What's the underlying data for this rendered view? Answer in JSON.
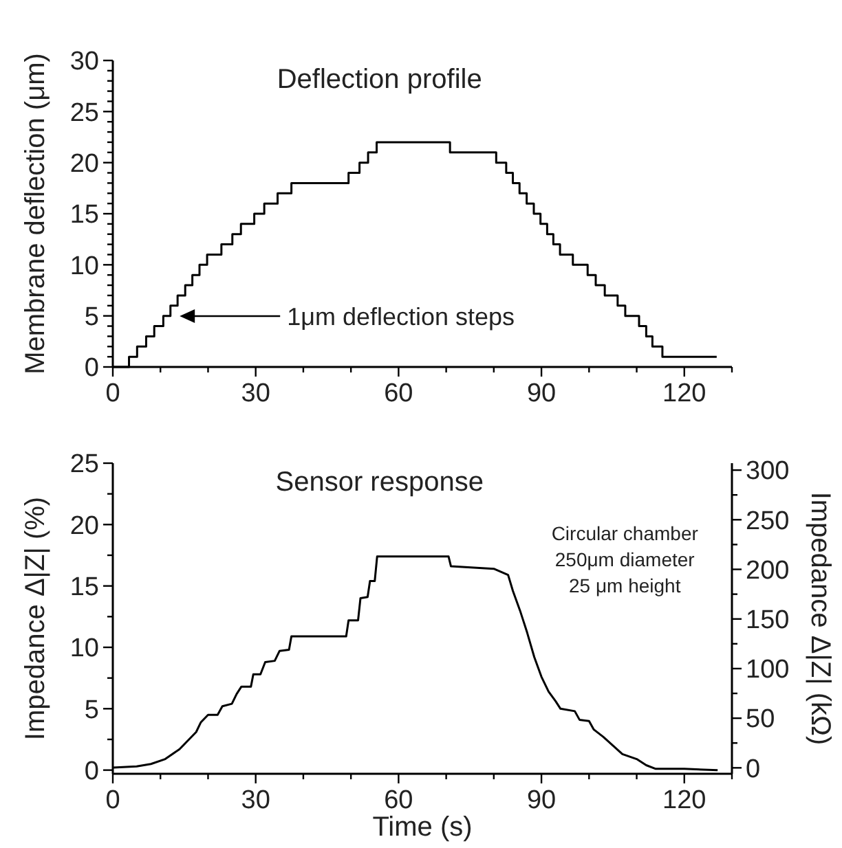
{
  "chart_data": [
    {
      "type": "step",
      "title": "Deflection profile",
      "ylabel": "Membrane deflection (μm)",
      "xlim": [
        0,
        130
      ],
      "ylim": [
        0,
        30
      ],
      "xticks": [
        0,
        {
          "value": 10,
          "label": null
        },
        {
          "value": 20,
          "label": null
        },
        30,
        {
          "value": 40,
          "label": null
        },
        {
          "value": 50,
          "label": null
        },
        60,
        {
          "value": 70,
          "label": null
        },
        {
          "value": 80,
          "label": null
        },
        90,
        {
          "value": 100,
          "label": null
        },
        {
          "value": 110,
          "label": null
        },
        120,
        {
          "value": 130,
          "label": null
        }
      ],
      "yticks": [
        0,
        {
          "value": 1,
          "label": null
        },
        {
          "value": 2,
          "label": null
        },
        {
          "value": 3,
          "label": null
        },
        {
          "value": 4,
          "label": null
        },
        5,
        {
          "value": 6,
          "label": null
        },
        {
          "value": 7,
          "label": null
        },
        {
          "value": 8,
          "label": null
        },
        {
          "value": 9,
          "label": null
        },
        10,
        {
          "value": 11,
          "label": null
        },
        {
          "value": 12,
          "label": null
        },
        {
          "value": 13,
          "label": null
        },
        {
          "value": 14,
          "label": null
        },
        15,
        {
          "value": 16,
          "label": null
        },
        {
          "value": 17,
          "label": null
        },
        {
          "value": 18,
          "label": null
        },
        {
          "value": 19,
          "label": null
        },
        20,
        {
          "value": 21,
          "label": null
        },
        {
          "value": 22,
          "label": null
        },
        {
          "value": 23,
          "label": null
        },
        {
          "value": 24,
          "label": null
        },
        25,
        {
          "value": 26,
          "label": null
        },
        {
          "value": 27,
          "label": null
        },
        {
          "value": 28,
          "label": null
        },
        {
          "value": 29,
          "label": null
        },
        30
      ],
      "annotations": [
        "1μm deflection steps"
      ],
      "series": [
        {
          "color": "#000000",
          "x": [
            0,
            3.4,
            5.1,
            7.0,
            8.7,
            10.6,
            12.1,
            13.6,
            15.2,
            16.7,
            18.2,
            19.8,
            22.8,
            25.1,
            26.9,
            29.7,
            31.8,
            34.6,
            37.5,
            49.5,
            51.8,
            53.6,
            55.4,
            70.8,
            80.5,
            82.6,
            84.0,
            85.4,
            86.9,
            88.4,
            89.8,
            91.2,
            92.5,
            93.9,
            96.6,
            99.7,
            101.4,
            103.3,
            106.0,
            107.6,
            110.5,
            112.0,
            113.3,
            115.4,
            126.8
          ],
          "values": [
            0,
            1,
            2,
            3,
            4,
            5,
            6,
            7,
            8,
            9,
            10,
            11,
            12,
            13,
            14,
            15,
            16,
            17,
            18,
            19,
            20,
            21,
            22,
            21,
            20,
            19,
            18,
            17,
            16,
            15,
            14,
            13,
            12,
            11,
            10,
            9,
            8,
            7,
            6,
            5,
            4,
            3,
            2,
            1,
            1
          ]
        }
      ]
    },
    {
      "type": "line",
      "title": "Sensor response",
      "xlabel": "Time (s)",
      "ylabel": "Impedance Δ|Z| (%)",
      "y2label": "Impedance Δ|Z| (kΩ)",
      "xlim": [
        0,
        130
      ],
      "ylim": [
        -0.3,
        25
      ],
      "y2lim": [
        -6,
        307
      ],
      "xticks": [
        0,
        {
          "value": 10,
          "label": null
        },
        {
          "value": 20,
          "label": null
        },
        30,
        {
          "value": 40,
          "label": null
        },
        {
          "value": 50,
          "label": null
        },
        60,
        {
          "value": 70,
          "label": null
        },
        {
          "value": 80,
          "label": null
        },
        90,
        {
          "value": 100,
          "label": null
        },
        {
          "value": 110,
          "label": null
        },
        120,
        {
          "value": 130,
          "label": null
        }
      ],
      "yticks": [
        0,
        {
          "value": 2.5,
          "label": null
        },
        5,
        {
          "value": 7.5,
          "label": null
        },
        10,
        {
          "value": 12.5,
          "label": null
        },
        15,
        {
          "value": 17.5,
          "label": null
        },
        20,
        {
          "value": 22.5,
          "label": null
        },
        25
      ],
      "y2ticks": [
        0,
        {
          "value": 25,
          "label": null
        },
        50,
        {
          "value": 75,
          "label": null
        },
        100,
        {
          "value": 125,
          "label": null
        },
        150,
        {
          "value": 175,
          "label": null
        },
        200,
        {
          "value": 225,
          "label": null
        },
        250,
        {
          "value": 275,
          "label": null
        },
        300
      ],
      "annotations": [
        "Circular chamber\n250μm diameter\n25 μm height"
      ],
      "series": [
        {
          "color": "#000000",
          "x": [
            0,
            5,
            8,
            11,
            14,
            16,
            17.5,
            18.5,
            20,
            22,
            23,
            25,
            26,
            27,
            29,
            29.5,
            31,
            32,
            34,
            35,
            37,
            37.5,
            49,
            49.5,
            51.5,
            52,
            53.5,
            54,
            55,
            55.5,
            70.5,
            71,
            80,
            83,
            84,
            85.5,
            87,
            88.5,
            90,
            91.5,
            93,
            94,
            97,
            98,
            100,
            101,
            103,
            105,
            107,
            110,
            112,
            114,
            120,
            127
          ],
          "values": [
            0.2,
            0.3,
            0.5,
            0.9,
            1.7,
            2.5,
            3.1,
            3.9,
            4.5,
            4.5,
            5.2,
            5.4,
            6.2,
            6.8,
            6.8,
            7.8,
            7.8,
            8.8,
            8.9,
            9.7,
            9.8,
            10.9,
            10.9,
            12.2,
            12.2,
            14.0,
            14.1,
            15.4,
            15.4,
            17.4,
            17.4,
            16.6,
            16.4,
            15.9,
            14.6,
            13.0,
            11.2,
            9.2,
            7.6,
            6.4,
            5.6,
            5.0,
            4.8,
            4.1,
            4.0,
            3.3,
            2.7,
            2.0,
            1.3,
            0.9,
            0.4,
            0.1,
            0.1,
            0
          ]
        }
      ]
    }
  ]
}
